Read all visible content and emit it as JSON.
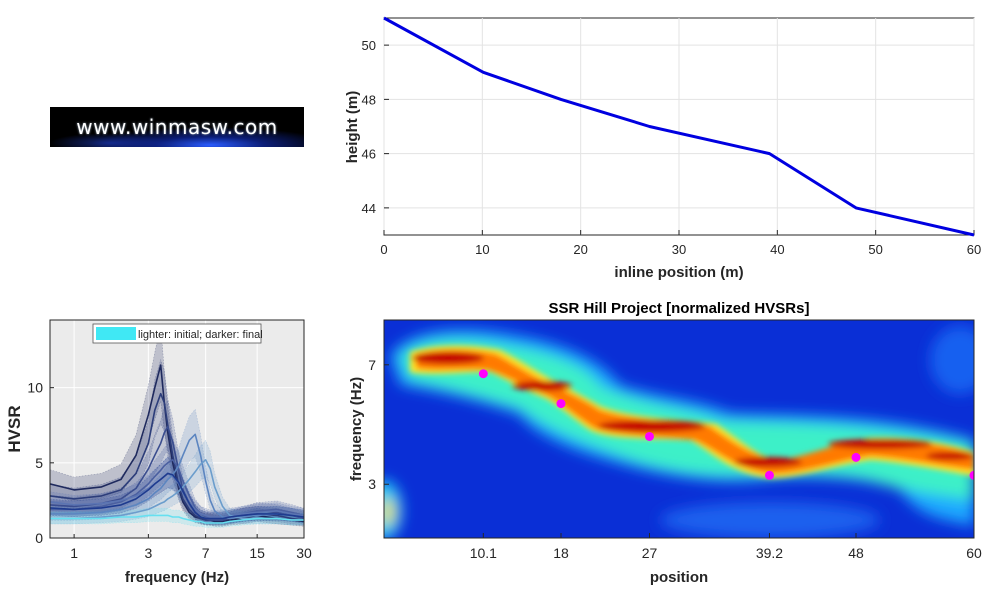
{
  "logo": {
    "text": "www.winmasw.com"
  },
  "chart_data": [
    {
      "type": "line",
      "title": "",
      "xlabel": "inline position (m)",
      "ylabel": "height (m)",
      "xlim": [
        0,
        60
      ],
      "ylim": [
        43,
        51
      ],
      "xticks": [
        0,
        10,
        20,
        30,
        40,
        50,
        60
      ],
      "yticks": [
        44,
        46,
        48,
        50
      ],
      "grid": true,
      "color": "#0000e0",
      "x": [
        0,
        10.1,
        18,
        27,
        39.2,
        48,
        60
      ],
      "y": [
        51,
        49,
        48,
        47,
        46,
        44,
        43
      ]
    },
    {
      "type": "line",
      "title": "",
      "xlabel": "frequency (Hz)",
      "ylabel": "HVSR",
      "xscale": "log",
      "xlim": [
        0.7,
        30
      ],
      "ylim": [
        0,
        14.5
      ],
      "xticks": [
        1,
        3,
        7,
        15,
        30
      ],
      "xtick_labels": [
        "1",
        "3",
        "7",
        "15",
        "30"
      ],
      "yticks": [
        0,
        5,
        10
      ],
      "legend": {
        "label": "lighter: initial; darker: final",
        "position": "top"
      },
      "x": [
        0.7,
        1,
        1.5,
        2,
        2.5,
        3,
        3.3,
        3.6,
        3.8,
        4,
        4.3,
        4.7,
        5,
        5.5,
        6,
        6.5,
        7,
        7.5,
        8,
        9,
        10,
        12,
        15,
        20,
        25,
        30
      ],
      "series": [
        {
          "color": "#1f2a5e",
          "values": [
            3.6,
            3.2,
            3.4,
            3.9,
            5.5,
            8.2,
            10,
            11.5,
            9,
            7,
            5,
            3.3,
            2.4,
            1.7,
            1.4,
            1.3,
            1.2,
            1.2,
            1.1,
            1.1,
            1.2,
            1.3,
            1.5,
            1.3,
            1.2,
            1.1
          ]
        },
        {
          "color": "#2c3d7a",
          "values": [
            2.8,
            2.6,
            2.8,
            3.2,
            4.3,
            6.3,
            8.5,
            9.6,
            9,
            7.5,
            5.5,
            3.5,
            2.6,
            1.9,
            1.5,
            1.3,
            1.2,
            1.2,
            1.2,
            1.2,
            1.3,
            1.5,
            1.6,
            1.5,
            1.3,
            1.2
          ]
        },
        {
          "color": "#3a4d8f",
          "values": [
            2.2,
            2.1,
            2.3,
            2.6,
            3.3,
            4.6,
            5.5,
            6.3,
            7,
            7.4,
            6.4,
            4.5,
            3.2,
            2.3,
            1.7,
            1.4,
            1.3,
            1.2,
            1.2,
            1.2,
            1.3,
            1.5,
            1.8,
            1.7,
            1.5,
            1.3
          ]
        },
        {
          "color": "#4a5fa0",
          "values": [
            1.9,
            1.9,
            2.1,
            2.4,
            2.9,
            3.6,
            4.1,
            4.5,
            4.8,
            5,
            5.2,
            4.6,
            3.8,
            2.8,
            2,
            1.6,
            1.4,
            1.3,
            1.3,
            1.3,
            1.4,
            1.6,
            1.8,
            1.9,
            1.7,
            1.5
          ]
        },
        {
          "color": "#5b74b2",
          "values": [
            2.4,
            2.2,
            2.3,
            2.5,
            2.8,
            3.3,
            3.6,
            3.9,
            4.1,
            4.3,
            4.1,
            3.6,
            3,
            2.4,
            1.9,
            1.6,
            1.5,
            1.4,
            1.4,
            1.4,
            1.5,
            1.6,
            1.7,
            1.8,
            1.6,
            1.5
          ]
        },
        {
          "color": "#5c85c0",
          "values": [
            1.6,
            1.6,
            1.7,
            1.9,
            2.2,
            2.6,
            3,
            3.3,
            3.6,
            3.9,
            4.2,
            4.8,
            5.5,
            6.5,
            6.9,
            5.5,
            3.8,
            2.5,
            1.8,
            1.4,
            1.3,
            1.4,
            1.5,
            1.6,
            1.5,
            1.4
          ]
        },
        {
          "color": "#6b9dcc",
          "values": [
            1.3,
            1.3,
            1.4,
            1.5,
            1.7,
            1.9,
            2.1,
            2.3,
            2.4,
            2.6,
            2.8,
            3.1,
            3.4,
            3.9,
            4.4,
            4.9,
            5.2,
            4.6,
            3.4,
            2.1,
            1.5,
            1.3,
            1.3,
            1.3,
            1.2,
            1.2
          ]
        },
        {
          "color": "#66e0f0",
          "values": [
            1.3,
            1.3,
            1.3,
            1.4,
            1.4,
            1.5,
            1.5,
            1.5,
            1.5,
            1.5,
            1.4,
            1.4,
            1.3,
            1.2,
            1.1,
            1.1,
            1,
            1,
            1,
            1,
            1.1,
            1.2,
            1.3,
            1.3,
            1.2,
            1.2
          ]
        },
        {
          "color": "#1e3b8f",
          "values": [
            2,
            1.9,
            2,
            2.2,
            2.6,
            3.2,
            3.6,
            3.9,
            4.1,
            4.3,
            4.2,
            3.7,
            3.1,
            2.3,
            1.7,
            1.4,
            1.3,
            1.3,
            1.3,
            1.3,
            1.4,
            1.5,
            1.6,
            1.6,
            1.5,
            1.4
          ]
        }
      ]
    },
    {
      "type": "heatmap",
      "title": "SSR Hill Project [normalized HVSRs]",
      "xlabel": "position",
      "ylabel": "frequency (Hz)",
      "xticks": [
        10.1,
        18,
        27,
        39.2,
        48,
        60
      ],
      "xtick_labels": [
        "10.1",
        "18",
        "27",
        "39.2",
        "48",
        "60"
      ],
      "xlim": [
        0,
        60
      ],
      "ylim": [
        1.2,
        8.5
      ],
      "yticks": [
        3,
        7
      ],
      "colormap": "jet",
      "peak_color": "#ff00ff",
      "peaks": [
        {
          "position": 10.1,
          "frequency": 6.7
        },
        {
          "position": 18,
          "frequency": 5.7
        },
        {
          "position": 27,
          "frequency": 4.6
        },
        {
          "position": 39.2,
          "frequency": 3.3
        },
        {
          "position": 48,
          "frequency": 3.9
        },
        {
          "position": 60,
          "frequency": 3.3
        }
      ]
    }
  ]
}
